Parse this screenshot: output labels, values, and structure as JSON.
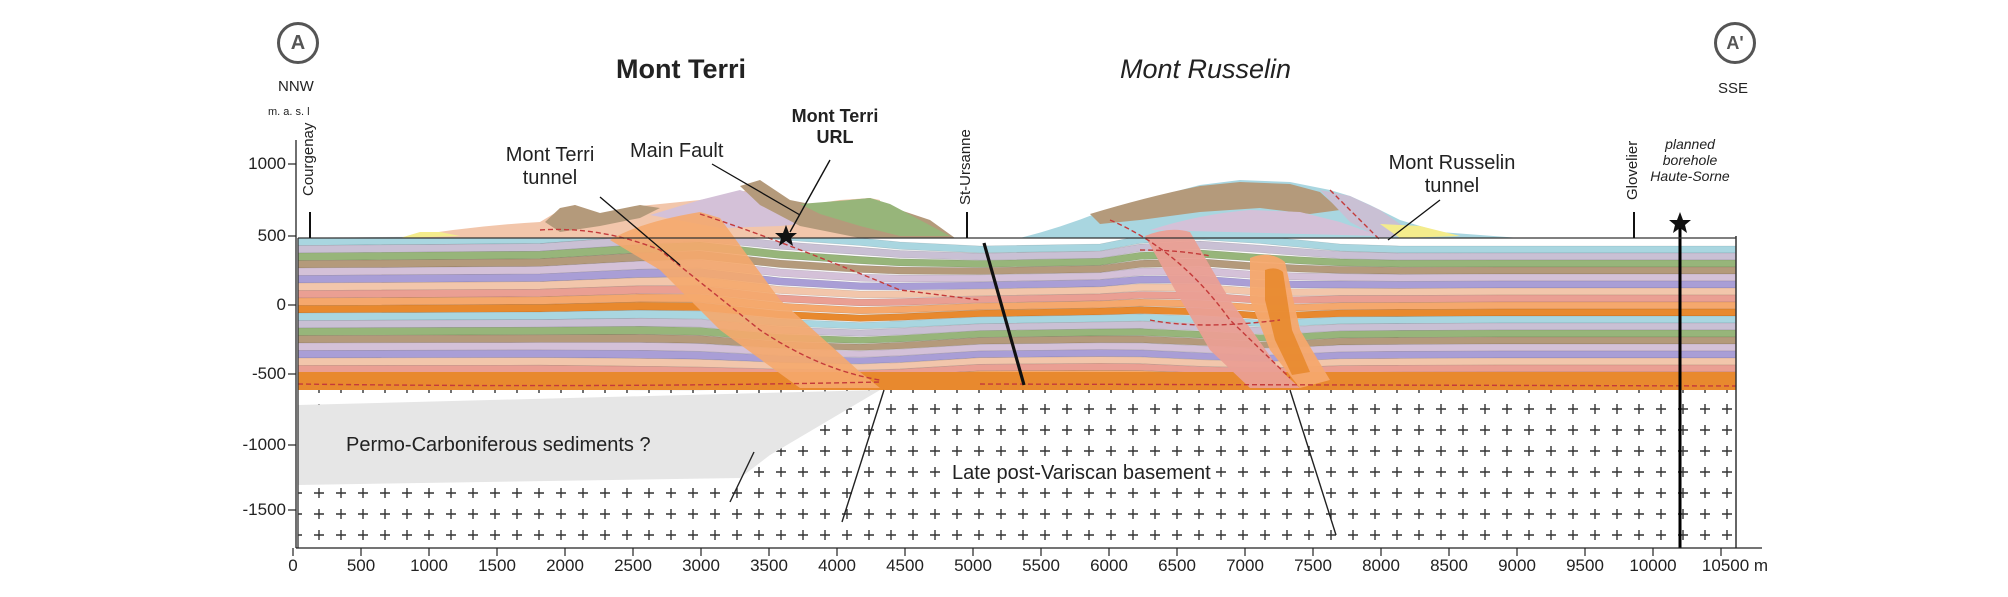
{
  "section": {
    "marker_left": "A",
    "marker_right": "A'",
    "direction_left": "NNW",
    "direction_right": "SSE",
    "elevation_unit": "m. a. s. l",
    "title_left": "Mont Terri",
    "title_right": "Mont Russelin"
  },
  "places": {
    "courgenay": "Courgenay",
    "st_ursanne": "St-Ursanne",
    "glovelier": "Glovelier"
  },
  "annotations": {
    "mont_terri_tunnel": [
      "Mont Terri",
      "tunnel"
    ],
    "main_fault": "Main Fault",
    "url": [
      "Mont Terri",
      "URL"
    ],
    "mont_russelin_tunnel": [
      "Mont Russelin",
      "tunnel"
    ],
    "borehole": [
      "planned",
      "borehole",
      "Haute-Sorne"
    ],
    "permo": "Permo-Carboniferous sediments ?",
    "basement": "Late post-Variscan basement"
  },
  "axes": {
    "y_ticks": [
      "1000",
      "500",
      "0",
      "-500",
      "-1000",
      "-1500"
    ],
    "x_ticks": [
      "0",
      "500",
      "1000",
      "1500",
      "2000",
      "2500",
      "3000",
      "3500",
      "4000",
      "4500",
      "5000",
      "5500",
      "6000",
      "6500",
      "7000",
      "7500",
      "8000",
      "8500",
      "9000",
      "9500",
      "10000",
      "10500 m"
    ]
  },
  "colors": {
    "layers": [
      "#a9d6e0",
      "#c9c0d4",
      "#97b57a",
      "#b49a7b",
      "#d4c1d8",
      "#a99ed6",
      "#f2c6ab",
      "#ea9f93",
      "#f5a86d",
      "#e8892e"
    ],
    "basement_fill": "#ffffff",
    "permo_fill": "#e6e6e6",
    "fault_line": "#111111",
    "thrust_dash": "#c43a3a"
  }
}
